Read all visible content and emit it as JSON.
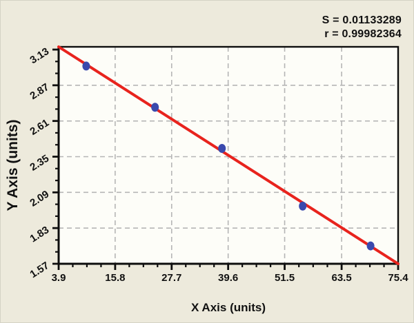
{
  "stats": {
    "s": "S = 0.01133289",
    "r": "r = 0.99982364"
  },
  "chart_data": {
    "type": "scatter",
    "title": "",
    "xlabel": "X Axis (units)",
    "ylabel": "Y Axis (units)",
    "xlim": [
      3.9,
      75.4
    ],
    "ylim": [
      1.57,
      3.15
    ],
    "x_ticks": [
      3.9,
      15.8,
      27.7,
      39.6,
      51.5,
      63.5,
      75.4
    ],
    "y_ticks": [
      3.13,
      2.87,
      2.61,
      2.35,
      2.09,
      1.83,
      1.57
    ],
    "x_minor_ticks_per_interval": 3,
    "y_minor_ticks_per_interval": 2,
    "grid": true,
    "legend": "none",
    "points": [
      [
        9.7,
        3.01
      ],
      [
        24.2,
        2.71
      ],
      [
        38.3,
        2.41
      ],
      [
        55.3,
        1.99
      ],
      [
        69.6,
        1.7
      ]
    ],
    "regression_line": {
      "x1": 3.9,
      "y1": 3.15,
      "x2": 75.4,
      "y2": 1.57
    },
    "annotations": {
      "s": "S = 0.01133289",
      "r": "r = 0.99982364"
    },
    "colors": {
      "page_bg": "#edeadc",
      "plot_bg": "#fdfdf8",
      "frame": "#0d0d0d",
      "grid": "#b5b5b5",
      "line": "#e8231d",
      "point": "#3a49ad",
      "text": "#111111"
    }
  }
}
